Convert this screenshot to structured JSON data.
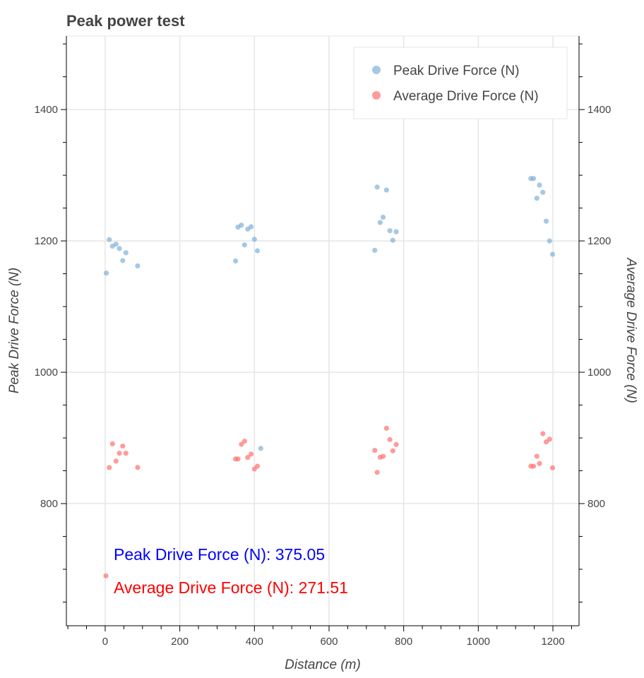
{
  "chart_data": {
    "type": "scatter",
    "title": "Peak power test",
    "xlabel": "Distance (m)",
    "ylabel": "Peak Drive Force (N)",
    "ylabel_right": "Average Drive Force (N)",
    "xlim": [
      -104,
      1270
    ],
    "ylim": [
      614,
      1512
    ],
    "grid": true,
    "legend_position": "top-right",
    "x_ticks": [
      0,
      200,
      400,
      600,
      800,
      1000,
      1200
    ],
    "y_ticks": [
      800,
      1000,
      1200,
      1400
    ],
    "series": [
      {
        "name": "Peak Drive Force (N)",
        "color": "#7fb1d8",
        "points": [
          [
            11,
            1202
          ],
          [
            19.5,
            1192
          ],
          [
            29,
            1195
          ],
          [
            38,
            1188.5
          ],
          [
            55.5,
            1182
          ],
          [
            47,
            1170
          ],
          [
            87,
            1162
          ],
          [
            3,
            1151
          ],
          [
            356,
            1221
          ],
          [
            365,
            1224
          ],
          [
            382,
            1218
          ],
          [
            391,
            1221.5
          ],
          [
            400,
            1202.5
          ],
          [
            373.5,
            1194
          ],
          [
            408,
            1185
          ],
          [
            349.5,
            1169.5
          ],
          [
            417,
            884
          ],
          [
            729,
            1282
          ],
          [
            754,
            1277.5
          ],
          [
            745,
            1236
          ],
          [
            737,
            1228
          ],
          [
            763,
            1215.5
          ],
          [
            780,
            1214
          ],
          [
            771,
            1201
          ],
          [
            722.5,
            1185.7
          ],
          [
            1141,
            1295
          ],
          [
            1148,
            1295
          ],
          [
            1164,
            1285
          ],
          [
            1173,
            1274
          ],
          [
            1157,
            1265
          ],
          [
            1182,
            1230
          ],
          [
            1191,
            1200
          ],
          [
            1199,
            1179.6
          ]
        ]
      },
      {
        "name": "Average Drive Force (N)",
        "color": "#ff7070",
        "points": [
          [
            19.5,
            891
          ],
          [
            47,
            887.5
          ],
          [
            38,
            876.7
          ],
          [
            55.5,
            876.7
          ],
          [
            29,
            864.8
          ],
          [
            11,
            854.8
          ],
          [
            87,
            855
          ],
          [
            2,
            690
          ],
          [
            365,
            890.3
          ],
          [
            373.5,
            895
          ],
          [
            391,
            875.3
          ],
          [
            382,
            870.3
          ],
          [
            349.5,
            868
          ],
          [
            356,
            868
          ],
          [
            408,
            857
          ],
          [
            400,
            852.7
          ],
          [
            754,
            914.7
          ],
          [
            763,
            897.5
          ],
          [
            780,
            890
          ],
          [
            722.5,
            881
          ],
          [
            771,
            880.3
          ],
          [
            737,
            870.6
          ],
          [
            745,
            872
          ],
          [
            729,
            847.6
          ],
          [
            1173,
            906.5
          ],
          [
            1191,
            898
          ],
          [
            1182,
            894
          ],
          [
            1157,
            872
          ],
          [
            1164,
            861
          ],
          [
            1141,
            857
          ],
          [
            1148,
            857
          ],
          [
            1199,
            854.5
          ]
        ]
      }
    ],
    "annotations": [
      {
        "text": "Peak Drive Force (N): 375.05",
        "color": "#0000ff"
      },
      {
        "text": "Average Drive Force (N): 271.51",
        "color": "#ff0000"
      }
    ]
  }
}
